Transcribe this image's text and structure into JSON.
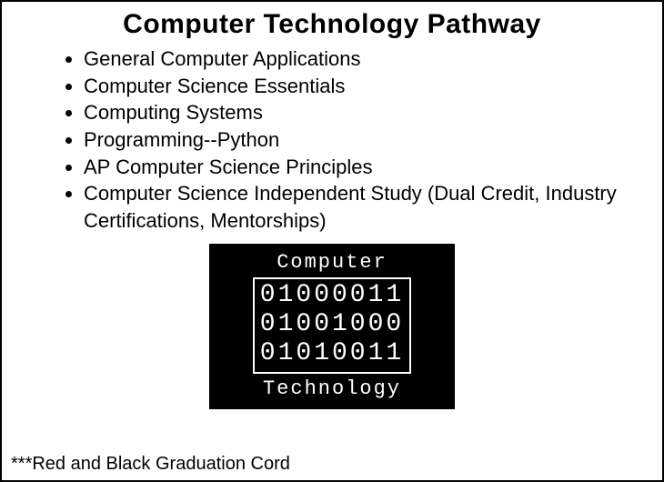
{
  "title": "Computer Technology Pathway",
  "courses": [
    "General Computer Applications",
    "Computer Science Essentials",
    "Computing Systems",
    "Programming--Python",
    "AP Computer Science Principles",
    "Computer Science Independent Study (Dual Credit, Industry Certifications, Mentorships)"
  ],
  "logo": {
    "top": "Computer",
    "binary": [
      "01000011",
      "01001000",
      "01010011"
    ],
    "bottom": "Technology",
    "bg_color": "#000000",
    "fg_color": "#ffffff"
  },
  "footnote": "***Red and Black Graduation Cord",
  "colors": {
    "page_bg": "#ffffff",
    "text": "#000000",
    "border": "#000000"
  },
  "typography": {
    "title_fontsize": 30,
    "body_fontsize": 22,
    "footnote_fontsize": 20,
    "logo_label_fontsize": 22,
    "logo_binary_fontsize": 28,
    "body_font": "Comic Sans MS",
    "logo_font": "Courier New"
  }
}
